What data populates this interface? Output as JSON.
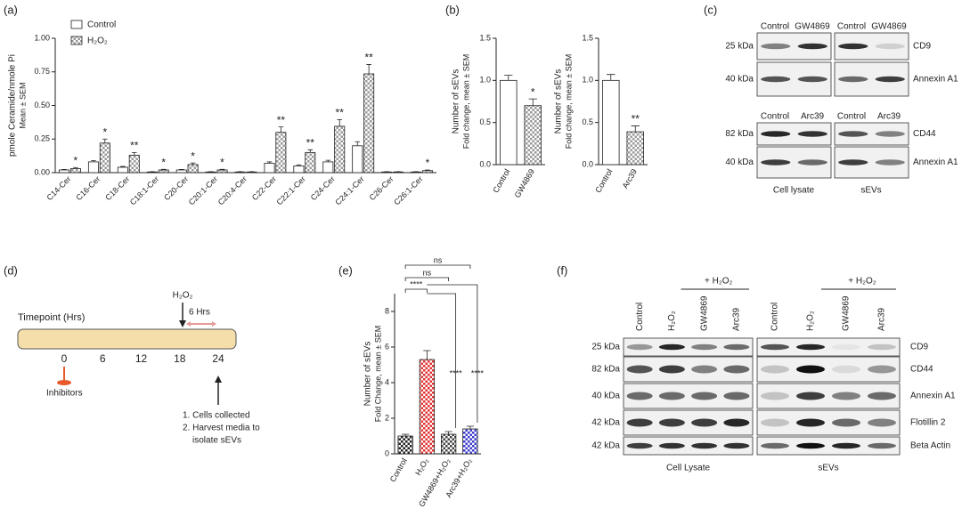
{
  "panel_labels": [
    "(a)",
    "(b)",
    "(c)",
    "(d)",
    "(e)",
    "(f)"
  ],
  "chart_data": [
    {
      "type": "bar",
      "ylabel": "pmole Ceramide/nmole Pi",
      "ylabel2": "Mean ± SEM",
      "categories": [
        "C14-Cer",
        "C16-Cer",
        "C18-Cer",
        "C18:1-Cer",
        "C20-Cer",
        "C20:1-Cer",
        "C20:4-Cer",
        "C22-Cer",
        "C22:1-Cer",
        "C24-Cer",
        "C24:1-Cer",
        "C26-Cer",
        "C26:1-Cer"
      ],
      "series": [
        {
          "name": "Control",
          "color": "#ffffff",
          "pattern": "solid",
          "values": [
            0.02,
            0.08,
            0.04,
            0.005,
            0.02,
            0.005,
            0.005,
            0.07,
            0.05,
            0.08,
            0.2,
            0.005,
            0.005
          ],
          "errors": [
            0.004,
            0.01,
            0.006,
            0.002,
            0.004,
            0.002,
            0.002,
            0.01,
            0.008,
            0.012,
            0.03,
            0.002,
            0.002
          ]
        },
        {
          "name": "H₂O₂",
          "color": "#9a9a9a",
          "pattern": "checker",
          "values": [
            0.03,
            0.22,
            0.13,
            0.02,
            0.06,
            0.02,
            0.005,
            0.3,
            0.15,
            0.345,
            0.735,
            0.005,
            0.015
          ],
          "errors": [
            0.008,
            0.03,
            0.02,
            0.005,
            0.012,
            0.005,
            0.002,
            0.04,
            0.02,
            0.05,
            0.07,
            0.002,
            0.005
          ],
          "significance": [
            "*",
            "*",
            "**",
            "*",
            "*",
            "*",
            null,
            "**",
            "**",
            "**",
            "**",
            null,
            "*"
          ]
        }
      ],
      "ylim": [
        0,
        1.0
      ],
      "yticks": [
        {
          "value": 0,
          "label": "0.00"
        },
        {
          "value": 0.25,
          "label": "0.25"
        },
        {
          "value": 0.5,
          "label": "0.50"
        },
        {
          "value": 0.75,
          "label": "0.75"
        },
        {
          "value": 1.0,
          "label": "1.00"
        }
      ],
      "legend": "top-left"
    },
    {
      "type": "bar",
      "ylabel": "Number of sEVs",
      "ylabel2": "Fold change, mean ± SEM",
      "categories": [
        "Control",
        "GW4869"
      ],
      "values": [
        1.0,
        0.7
      ],
      "errors": [
        0.06,
        0.08
      ],
      "colors": [
        "#ffffff",
        "#9a9a9a"
      ],
      "patterns": [
        "solid",
        "checker"
      ],
      "significance": [
        null,
        "*"
      ],
      "ylim": [
        0,
        1.5
      ],
      "yticks": [
        {
          "value": 0,
          "label": "0.0"
        },
        {
          "value": 0.5,
          "label": "0.5"
        },
        {
          "value": 1.0,
          "label": "1.0"
        },
        {
          "value": 1.5,
          "label": "1.5"
        }
      ]
    },
    {
      "type": "bar",
      "ylabel": "Number of sEVs",
      "ylabel2": "Fold change, mean ± SEM",
      "categories": [
        "Control",
        "Arc39"
      ],
      "values": [
        1.0,
        0.39
      ],
      "errors": [
        0.07,
        0.07
      ],
      "colors": [
        "#ffffff",
        "#9a9a9a"
      ],
      "patterns": [
        "solid",
        "checker"
      ],
      "significance": [
        null,
        "**"
      ],
      "ylim": [
        0,
        1.5
      ],
      "yticks": [
        {
          "value": 0,
          "label": "0.0"
        },
        {
          "value": 0.5,
          "label": "0.5"
        },
        {
          "value": 1.0,
          "label": "1.0"
        },
        {
          "value": 1.5,
          "label": "1.5"
        }
      ]
    },
    {
      "type": "bar",
      "ylabel": "Number of sEVs",
      "ylabel2": "Fold Change, mean ± SEM",
      "categories": [
        "Control",
        "H₂O₂",
        "GW4869+H₂O₂",
        "Arc39+H₂O₂"
      ],
      "values": [
        1.0,
        5.3,
        1.1,
        1.4
      ],
      "errors": [
        0.1,
        0.5,
        0.15,
        0.15
      ],
      "colors": [
        "#222222",
        "#e03030",
        "#444444",
        "#3a3acc"
      ],
      "patterns": [
        "checker",
        "checker",
        "checker",
        "checker"
      ],
      "comparisons": [
        {
          "pair": [
            0,
            1
          ],
          "label": "****"
        },
        {
          "pair": [
            0,
            2
          ],
          "label": "ns"
        },
        {
          "pair": [
            0,
            3
          ],
          "label": "ns"
        },
        {
          "pair": [
            1,
            2
          ],
          "label": "****"
        },
        {
          "pair": [
            1,
            3
          ],
          "label": "****"
        }
      ],
      "ylim": [
        0,
        9
      ],
      "yticks": [
        0,
        2,
        4,
        6,
        8
      ]
    }
  ],
  "blots_c": {
    "top": {
      "lanes": [
        "Control",
        "GW4869",
        "Control",
        "GW4869"
      ],
      "rows": [
        {
          "size": "25 kDa",
          "protein": "CD9"
        },
        {
          "size": "40 kDa",
          "protein": "Annexin A1"
        }
      ]
    },
    "bottom": {
      "lanes": [
        "Control",
        "Arc39",
        "Control",
        "Arc39"
      ],
      "rows": [
        {
          "size": "82 kDa",
          "protein": "CD44"
        },
        {
          "size": "40 kDa",
          "protein": "Annexin A1"
        }
      ]
    },
    "footers": [
      "Cell lysate",
      "sEVs"
    ]
  },
  "timeline": {
    "axis_label": "Timepoint (Hrs)",
    "ticks": [
      0,
      6,
      12,
      18,
      24
    ],
    "treatment": "H₂O₂",
    "duration": "6 Hrs",
    "start_label": "Inhibitors",
    "steps": [
      "1.  Cells collected",
      "2.  Harvest media to",
      "isolate sEVs"
    ]
  },
  "blots_f": {
    "lanes": [
      "Control",
      "H₂O₂",
      "GW4869",
      "Arc39"
    ],
    "treatment": "+ H₂O₂",
    "rows": [
      {
        "size": "25 kDa",
        "protein": "CD9"
      },
      {
        "size": "82 kDa",
        "protein": "CD44"
      },
      {
        "size": "40 kDa",
        "protein": "Annexin A1"
      },
      {
        "size": "42 kDa",
        "protein": "Flotillin 2"
      },
      {
        "size": "42 kDa",
        "protein": "Beta Actin"
      }
    ],
    "footers": [
      "Cell Lysate",
      "sEVs"
    ]
  }
}
